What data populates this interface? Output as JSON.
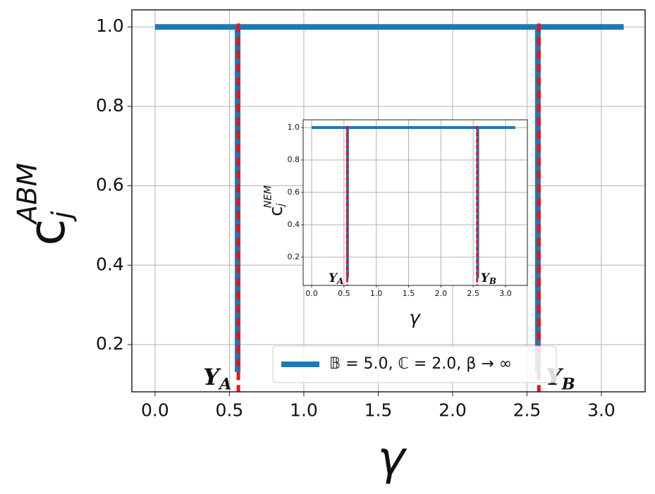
{
  "chart_data": [
    {
      "type": "line",
      "xlabel": "γ",
      "ylabel": "c",
      "ylabel_sub": "j",
      "ylabel_sup": "ABM",
      "xlim": [
        -0.156,
        3.294
      ],
      "ylim": [
        0.081,
        1.043
      ],
      "xticks": [
        {
          "value": 0,
          "label": "0.0"
        },
        0.5,
        {
          "value": 1,
          "label": "1.0"
        },
        1.5,
        {
          "value": 2,
          "label": "2.0"
        },
        2.5,
        {
          "value": 3,
          "label": "3.0"
        }
      ],
      "yticks": [
        0.2,
        0.4,
        0.6,
        0.8,
        {
          "value": 1,
          "label": "1.0"
        }
      ],
      "grid": true,
      "legend": "lower center",
      "series": [
        {
          "name": "𝔹 = 5.0, ℂ = 2.0, β → ∞",
          "color": "#1f77b4",
          "x": [
            0,
            0.555,
            0.555,
            0.555,
            2.573,
            2.573,
            2.573,
            3.15
          ],
          "values": [
            1,
            1,
            0.131,
            1,
            1,
            0.131,
            1,
            1
          ]
        }
      ],
      "vlines": [
        {
          "x": 0.56,
          "color": "#e8141b",
          "label": "Υ",
          "label_sub": "A",
          "label_side": "left"
        },
        {
          "x": 2.58,
          "color": "#e8141b",
          "label": "Υ",
          "label_sub": "B",
          "label_side": "right"
        }
      ]
    },
    {
      "type": "line",
      "xlabel": "γ",
      "ylabel": "c",
      "ylabel_sub": "j",
      "ylabel_sup": "NEM",
      "xlim": [
        -0.131,
        3.338
      ],
      "ylim": [
        0.026,
        1.048
      ],
      "xticks": [
        {
          "value": 0,
          "label": "0.0"
        },
        0.5,
        {
          "value": 1,
          "label": "1.0"
        },
        1.5,
        {
          "value": 2,
          "label": "2.0"
        },
        2.5,
        {
          "value": 3,
          "label": "3.0"
        }
      ],
      "yticks": [
        0.2,
        0.4,
        0.6,
        0.8,
        {
          "value": 1,
          "label": "1.0"
        }
      ],
      "grid": true,
      "series": [
        {
          "color": "#1f77b4",
          "x": [
            0,
            0.555,
            0.555,
            0.555,
            2.57,
            2.57,
            2.57,
            3.15
          ],
          "values": [
            1,
            1,
            0.07,
            1,
            1,
            0.07,
            1,
            1
          ]
        }
      ],
      "vlines": [
        {
          "x": 0.55,
          "color": "#e8141b",
          "label": "Υ",
          "label_sub": "A",
          "label_side": "left"
        },
        {
          "x": 2.56,
          "color": "#e8141b",
          "label": "Υ",
          "label_sub": "B",
          "label_side": "right"
        }
      ]
    }
  ]
}
